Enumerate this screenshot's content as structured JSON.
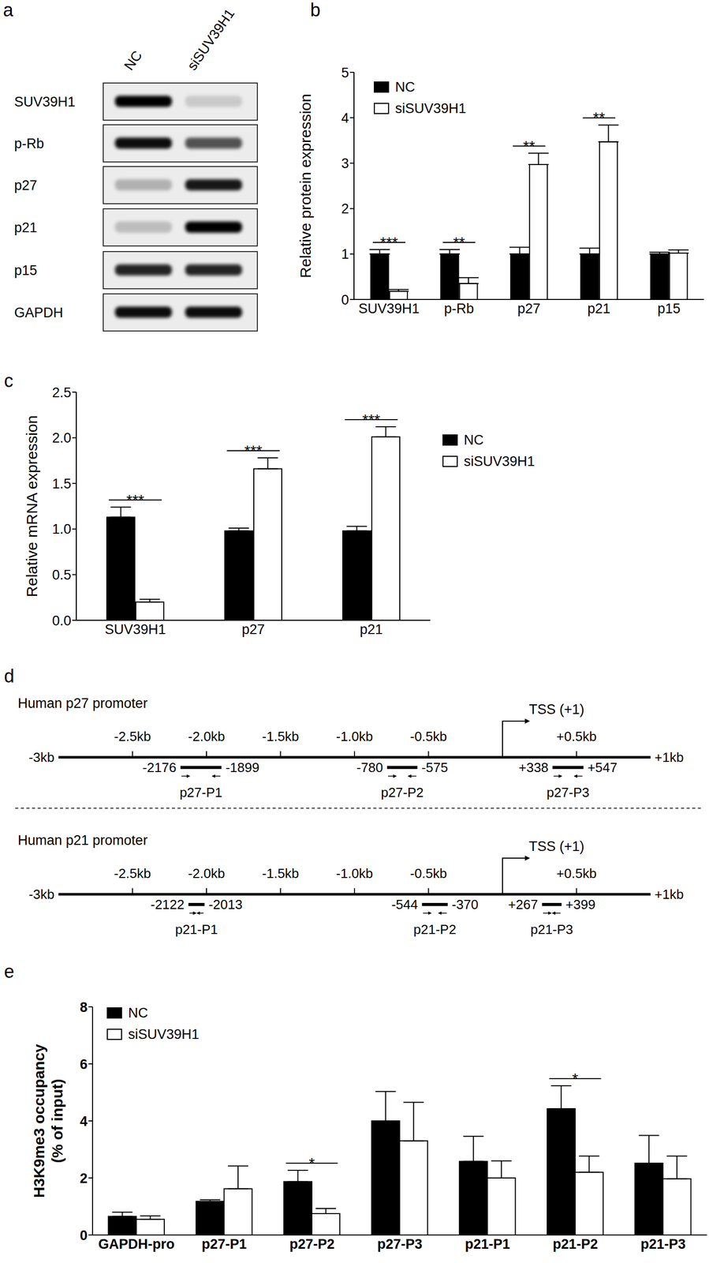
{
  "panel_labels": [
    "a",
    "b",
    "c",
    "d",
    "e"
  ],
  "western_blot": {
    "lanes": [
      "NC",
      "siSUV39H1"
    ],
    "rows": [
      {
        "label": "SUV39H1",
        "band_intensity": [
          1,
          0.15
        ]
      },
      {
        "label": "p-Rb",
        "band_intensity": [
          0.95,
          0.65
        ]
      },
      {
        "label": "p27",
        "band_intensity": [
          0.25,
          0.9
        ]
      },
      {
        "label": "p21",
        "band_intensity": [
          0.2,
          1
        ]
      },
      {
        "label": "p15",
        "band_intensity": [
          0.85,
          0.85
        ]
      },
      {
        "label": "GAPDH",
        "band_intensity": [
          0.95,
          0.95
        ]
      }
    ]
  },
  "chart_data": [
    {
      "type": "bar",
      "y_label": [
        "Relative protein expression"
      ],
      "categories": [
        "SUV39H1",
        "p-Rb",
        "p27",
        "p21",
        "p15"
      ],
      "series": [
        {
          "name": "NC",
          "color": "#000000",
          "values": [
            1,
            1,
            1,
            1,
            1
          ],
          "errors": [
            0.1,
            0.1,
            0.15,
            0.13,
            0.04
          ]
        },
        {
          "name": "siSUV39H1",
          "color": "#ffffff",
          "values": [
            0.18,
            0.35,
            2.97,
            3.47,
            1.02
          ],
          "errors": [
            0.04,
            0.13,
            0.25,
            0.37,
            0.07
          ]
        }
      ],
      "significance": [
        "***",
        "**",
        "**",
        "**",
        null
      ],
      "ylim": [
        0,
        5
      ],
      "yticks": [
        0,
        1,
        2,
        3,
        4,
        5
      ],
      "legend": "upper left"
    },
    {
      "type": "bar",
      "y_label": [
        "Relative mRNA expression"
      ],
      "categories": [
        "SUV39H1",
        "p27",
        "p21"
      ],
      "series": [
        {
          "name": "NC",
          "color": "#000000",
          "values": [
            1.13,
            0.98,
            0.98
          ],
          "errors": [
            0.11,
            0.03,
            0.05
          ]
        },
        {
          "name": "siSUV39H1",
          "color": "#ffffff",
          "values": [
            0.2,
            1.66,
            2.01
          ],
          "errors": [
            0.03,
            0.12,
            0.11
          ]
        }
      ],
      "significance": [
        "***",
        "***",
        "***"
      ],
      "ylim": [
        0,
        2.5
      ],
      "yticks": [
        {
          "value": 0,
          "label": "0.0"
        },
        0.5,
        {
          "value": 1,
          "label": "1.0"
        },
        1.5,
        {
          "value": 2,
          "label": "2.0"
        },
        2.5
      ],
      "legend": "right"
    },
    {
      "type": "bar",
      "y_label": [
        "H3K9me3 occupancy",
        "(% of input)"
      ],
      "categories": [
        "GAPDH-pro",
        "p27-P1",
        "p27-P2",
        "p27-P3",
        "p21-P1",
        "p21-P2",
        "p21-P3"
      ],
      "series": [
        {
          "name": "NC",
          "color": "#000000",
          "values": [
            0.65,
            1.18,
            1.87,
            4.0,
            2.58,
            4.43,
            2.52
          ],
          "errors": [
            0.15,
            0.05,
            0.4,
            1.03,
            0.88,
            0.8,
            0.97
          ]
        },
        {
          "name": "siSUV39H1",
          "color": "#ffffff",
          "values": [
            0.55,
            1.62,
            0.75,
            3.3,
            2.0,
            2.2,
            1.97
          ],
          "errors": [
            0.12,
            0.8,
            0.18,
            1.35,
            0.6,
            0.57,
            0.8
          ]
        }
      ],
      "significance": [
        null,
        null,
        "*",
        null,
        null,
        "*",
        null
      ],
      "ylim": [
        0,
        8
      ],
      "yticks": [
        0,
        2,
        4,
        6,
        8
      ],
      "legend": "upper left"
    }
  ],
  "promoter_diagram": {
    "promoters": [
      {
        "title": "Human p27 promoter",
        "start": {
          "value": -3000,
          "label": "-3kb"
        },
        "end": {
          "value": 1000,
          "label": "+1kb"
        },
        "ticks": [
          {
            "value": -2500,
            "label": "-2.5kb"
          },
          {
            "value": -2000,
            "label": "-2.0kb"
          },
          {
            "value": -1500,
            "label": "-1.5kb"
          },
          {
            "value": -1000,
            "label": "-1.0kb"
          },
          {
            "value": -500,
            "label": "-0.5kb"
          },
          {
            "value": 500,
            "label": "+0.5kb"
          }
        ],
        "tss": {
          "value": 0,
          "label": "TSS (+1)"
        },
        "amplicons": [
          {
            "name": "p27-P1",
            "start": -2176,
            "end": -1899
          },
          {
            "name": "p27-P2",
            "start": -780,
            "end": -575
          },
          {
            "name": "p27-P3",
            "start": {
              "value": 338,
              "label": "+338"
            },
            "end": {
              "value": 547,
              "label": "+547"
            }
          }
        ]
      },
      {
        "title": "Human p21 promoter",
        "start": {
          "value": -3000,
          "label": "-3kb"
        },
        "end": {
          "value": 1000,
          "label": "+1kb"
        },
        "ticks": [
          {
            "value": -2500,
            "label": "-2.5kb"
          },
          {
            "value": -2000,
            "label": "-2.0kb"
          },
          {
            "value": -1500,
            "label": "-1.5kb"
          },
          {
            "value": -1000,
            "label": "-1.0kb"
          },
          {
            "value": -500,
            "label": "-0.5kb"
          },
          {
            "value": 500,
            "label": "+0.5kb"
          }
        ],
        "tss": {
          "value": 0,
          "label": "TSS (+1)"
        },
        "amplicons": [
          {
            "name": "p21-P1",
            "start": -2122,
            "end": -2013
          },
          {
            "name": "p21-P2",
            "start": -544,
            "end": -370
          },
          {
            "name": "p21-P3",
            "start": {
              "value": 267,
              "label": "+267"
            },
            "end": {
              "value": 399,
              "label": "+399"
            }
          }
        ]
      }
    ]
  }
}
